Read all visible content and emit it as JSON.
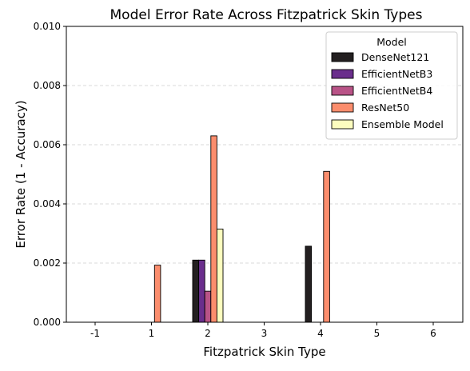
{
  "chart_data": {
    "type": "bar",
    "title": "Model Error Rate Across Fitzpatrick Skin Types",
    "xlabel": "Fitzpatrick Skin Type",
    "ylabel": "Error Rate (1 - Accuracy)",
    "categories": [
      "-1",
      "1",
      "2",
      "3",
      "4",
      "5",
      "6"
    ],
    "ylim": [
      0,
      0.01
    ],
    "yticks": [
      "0.000",
      "0.002",
      "0.004",
      "0.006",
      "0.008",
      "0.010"
    ],
    "grid": "horizontal dashed",
    "legend": {
      "title": "Model",
      "placement": "top-right"
    },
    "series": [
      {
        "name": "DenseNet121",
        "color": "#231f20",
        "values": [
          0,
          0,
          0.0021,
          0,
          0.00257,
          0,
          0
        ]
      },
      {
        "name": "EfficientNetB3",
        "color": "#6a2e8c",
        "values": [
          0,
          0,
          0.0021,
          0,
          0,
          0,
          0
        ]
      },
      {
        "name": "EfficientNetB4",
        "color": "#b95387",
        "values": [
          0,
          0,
          0.00105,
          0,
          0,
          0,
          0
        ]
      },
      {
        "name": "ResNet50",
        "color": "#fb8d6d",
        "values": [
          0,
          0.00193,
          0.0063,
          0,
          0.0051,
          0,
          0
        ]
      },
      {
        "name": "Ensemble Model",
        "color": "#fcfdbf",
        "values": [
          0,
          0,
          0.00315,
          0,
          0,
          0,
          0
        ]
      }
    ]
  }
}
